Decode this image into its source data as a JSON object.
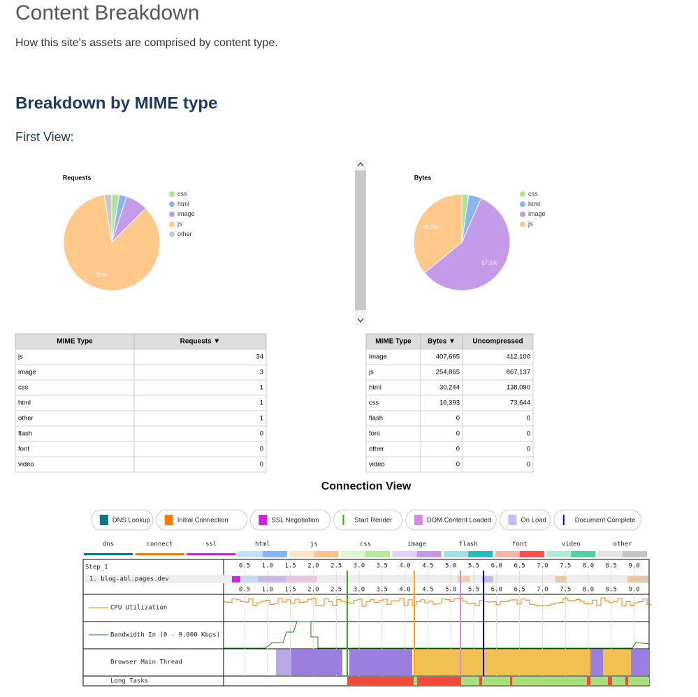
{
  "header": {
    "title": "Content Breakdown",
    "subtitle": "How this site's assets are comprised by content type."
  },
  "section_title": "Breakdown by MIME type",
  "view_label": "First View:",
  "chart_data": [
    {
      "type": "pie",
      "title": "Requests",
      "categories": [
        "css",
        "html",
        "image",
        "js",
        "other"
      ],
      "values": [
        2.5,
        2.5,
        7.5,
        85,
        2.5
      ],
      "value_labels": [
        null,
        null,
        null,
        "85%",
        null
      ],
      "colors": [
        "#b3e29a",
        "#8ab4f8",
        "#c39be8",
        "#ffc98b",
        "#c8c8c8"
      ]
    },
    {
      "type": "pie",
      "title": "Bytes",
      "categories": [
        "css",
        "html",
        "image",
        "js"
      ],
      "values": [
        2.3,
        4.3,
        57.5,
        35.9
      ],
      "value_labels": [
        null,
        null,
        "57.5%",
        "35.9%"
      ],
      "colors": [
        "#b3e29a",
        "#8ab4f8",
        "#c39be8",
        "#ffc98b"
      ]
    }
  ],
  "tables": [
    {
      "columns": [
        "MIME Type",
        "Requests ▼"
      ],
      "rows": [
        [
          "js",
          "34"
        ],
        [
          "image",
          "3"
        ],
        [
          "css",
          "1"
        ],
        [
          "html",
          "1"
        ],
        [
          "other",
          "1"
        ],
        [
          "flash",
          "0"
        ],
        [
          "font",
          "0"
        ],
        [
          "video",
          "0"
        ]
      ]
    },
    {
      "columns": [
        "MIME Type",
        "Bytes ▼",
        "Uncompressed"
      ],
      "rows": [
        [
          "image",
          "407,665",
          "412,100"
        ],
        [
          "js",
          "254,865",
          "867,137"
        ],
        [
          "html",
          "30,244",
          "138,090"
        ],
        [
          "css",
          "16,393",
          "73,644"
        ],
        [
          "flash",
          "0",
          "0"
        ],
        [
          "font",
          "0",
          "0"
        ],
        [
          "other",
          "0",
          "0"
        ],
        [
          "video",
          "0",
          "0"
        ]
      ]
    }
  ],
  "connection_view": {
    "title": "Connection View",
    "legend": [
      {
        "label": "DNS Lookup",
        "color": "#007b84",
        "marker": "box"
      },
      {
        "label": "Initial Connection",
        "color": "#ff7b00",
        "marker": "box"
      },
      {
        "label": "SSL Negotiation",
        "color": "#cf25df",
        "marker": "box"
      },
      {
        "label": "Start Render",
        "color": "#28bc00",
        "marker": "line"
      },
      {
        "label": "DOM Content Loaded",
        "color": "#d888df",
        "marker": "box"
      },
      {
        "label": "On Load",
        "color": "#c0c0ff",
        "marker": "box"
      },
      {
        "label": "Document Complete",
        "color": "#0000d6",
        "marker": "line"
      }
    ],
    "content_types": [
      {
        "label": "dns",
        "color": "#007b84"
      },
      {
        "label": "connect",
        "color": "#ff7b00"
      },
      {
        "label": "ssl",
        "color": "#cf25df"
      },
      {
        "label": "html",
        "color": "#82b5fc"
      },
      {
        "label": "js",
        "color": "#fec584"
      },
      {
        "label": "css",
        "color": "#b2ea94"
      },
      {
        "label": "image",
        "color": "#c49ae8"
      },
      {
        "label": "flash",
        "color": "#2db7c1"
      },
      {
        "label": "font",
        "color": "#ff5244"
      },
      {
        "label": "video",
        "color": "#4fd0a9"
      },
      {
        "label": "other",
        "color": "#c4c4c4"
      }
    ],
    "time_ticks": [
      "0.5",
      "1.0",
      "1.5",
      "2.0",
      "2.5",
      "3.0",
      "3.5",
      "4.0",
      "4.5",
      "5.0",
      "5.5",
      "6.0",
      "6.5",
      "7.0",
      "7.5",
      "8.0",
      "8.5",
      "9.0"
    ],
    "step": "Step_1",
    "request": "1. blog-abl.pages.dev",
    "cpu": "CPU Utilization",
    "bandwidth": "Bandwidth In (0 - 9,000 Kbps)",
    "main_thread": "Browser Main Thread",
    "long_tasks": "Long Tasks"
  }
}
